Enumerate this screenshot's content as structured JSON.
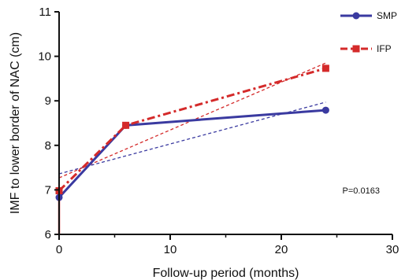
{
  "chart_data": {
    "type": "line",
    "xlabel": "Follow-up period (months)",
    "ylabel": "IMF to lower border of NAC (cm)",
    "xlim": [
      0,
      30
    ],
    "ylim": [
      6,
      11
    ],
    "xticks": [
      0,
      10,
      20,
      30
    ],
    "yticks": [
      6,
      7,
      8,
      9,
      10,
      11
    ],
    "legend_position": "top-right",
    "series": [
      {
        "name": "SMP",
        "x": [
          0,
          6,
          24
        ],
        "y": [
          6.83,
          8.45,
          8.79
        ],
        "color": "#3a3aa0",
        "marker": "circle",
        "line_style": "solid",
        "trend": {
          "x": [
            0,
            24
          ],
          "y": [
            7.36,
            8.97
          ]
        }
      },
      {
        "name": "IFP",
        "x": [
          0,
          6,
          24
        ],
        "y": [
          6.98,
          8.45,
          9.73
        ],
        "color": "#d42a2a",
        "marker": "square",
        "line_style": "dash-dot",
        "trend": {
          "x": [
            0,
            24
          ],
          "y": [
            7.27,
            9.85
          ]
        }
      }
    ],
    "annotations": [
      {
        "text": "P=0.0163",
        "x": 25.5,
        "y": 6.92
      }
    ]
  }
}
